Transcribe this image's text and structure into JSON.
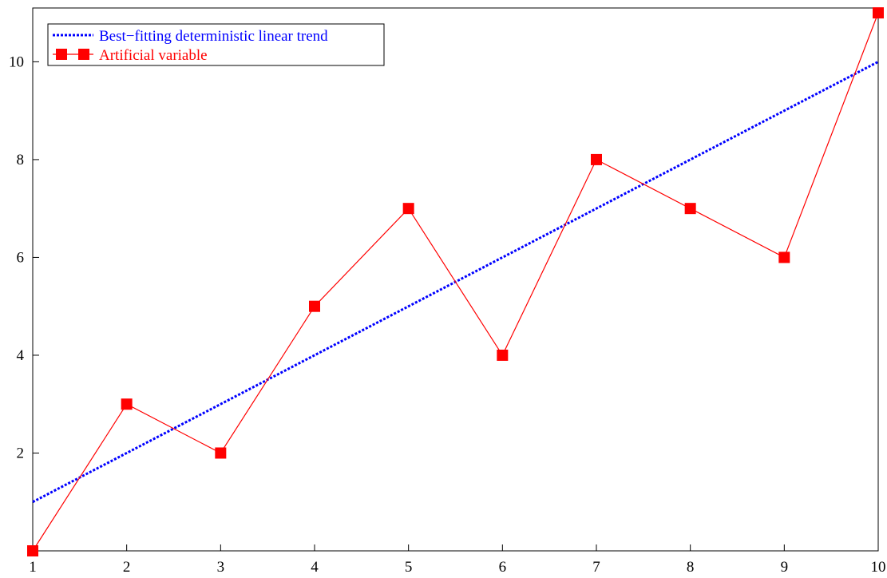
{
  "chart_data": {
    "type": "line",
    "title": "",
    "xlabel": "",
    "ylabel": "",
    "x": [
      1,
      2,
      3,
      4,
      5,
      6,
      7,
      8,
      9,
      10
    ],
    "xlim": [
      1,
      10
    ],
    "ylim": [
      0,
      11.1
    ],
    "x_ticks": [
      1,
      2,
      3,
      4,
      5,
      6,
      7,
      8,
      9,
      10
    ],
    "y_ticks": [
      2,
      4,
      6,
      8,
      10
    ],
    "grid": false,
    "legend_position": "top-left",
    "series": [
      {
        "name": "Best−fitting deterministic linear trend",
        "style": "dotted",
        "color": "#0000ff",
        "values": [
          1,
          2,
          3,
          4,
          5,
          6,
          7,
          8,
          9,
          10
        ]
      },
      {
        "name": "Artificial variable",
        "style": "solid-square-markers",
        "color": "#ff0000",
        "values": [
          0,
          3,
          2,
          5,
          7,
          4,
          8,
          7,
          6,
          11
        ]
      }
    ]
  }
}
